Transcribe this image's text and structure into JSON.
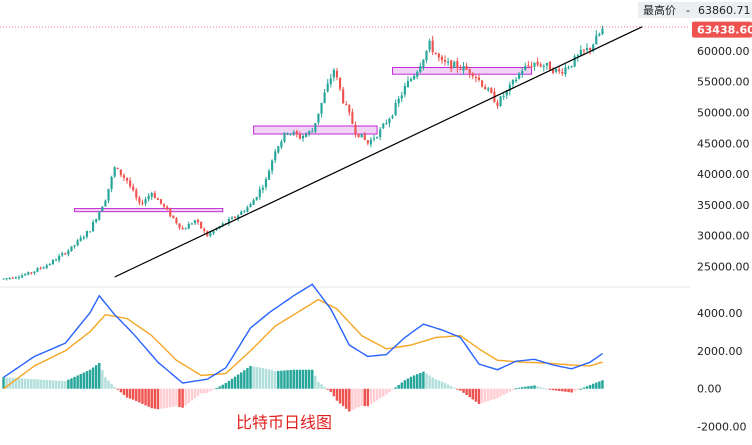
{
  "chart_data": {
    "type": "candlestick",
    "caption": "比特币日线图",
    "price_axis": {
      "ticks": [
        25000,
        30000,
        35000,
        40000,
        45000,
        50000,
        55000,
        60000
      ],
      "tick_labels": [
        "25000.00",
        "30000.00",
        "35000.00",
        "40000.00",
        "45000.00",
        "50000.00",
        "55000.00",
        "60000.00"
      ],
      "range": [
        22000,
        65000
      ]
    },
    "indicator_axis": {
      "ticks": [
        4000,
        2000,
        0,
        -2000
      ],
      "tick_labels": [
        "4000.00",
        "2000.00",
        "0.00",
        "-2000.00"
      ],
      "range": [
        -2700,
        5200
      ]
    },
    "high_marker": {
      "label": "最高价",
      "value_text": "63860.71",
      "value": 63860.71
    },
    "last_price": {
      "value_text": "63438.60",
      "value": 63438.6
    },
    "colors": {
      "up": "#26a69a",
      "down": "#ef5350",
      "line_fast": "#2962ff",
      "line_slow": "#f5a623",
      "trendline": "#000000",
      "zone": "#c02bd4"
    },
    "candle_count": 195,
    "price_path": [
      [
        0,
        23000
      ],
      [
        8,
        23800
      ],
      [
        15,
        25500
      ],
      [
        22,
        28000
      ],
      [
        28,
        31000
      ],
      [
        33,
        36000
      ],
      [
        36,
        41000
      ],
      [
        40,
        39000
      ],
      [
        44,
        35000
      ],
      [
        48,
        37000
      ],
      [
        53,
        34000
      ],
      [
        58,
        31000
      ],
      [
        62,
        32500
      ],
      [
        66,
        30000
      ],
      [
        70,
        31500
      ],
      [
        75,
        33000
      ],
      [
        80,
        35000
      ],
      [
        85,
        39000
      ],
      [
        88,
        44000
      ],
      [
        92,
        47000
      ],
      [
        96,
        46000
      ],
      [
        100,
        47000
      ],
      [
        104,
        53000
      ],
      [
        107,
        57000
      ],
      [
        110,
        52000
      ],
      [
        114,
        47000
      ],
      [
        118,
        45000
      ],
      [
        122,
        47000
      ],
      [
        126,
        50000
      ],
      [
        130,
        54000
      ],
      [
        134,
        57000
      ],
      [
        138,
        61000
      ],
      [
        142,
        58000
      ],
      [
        147,
        57500
      ],
      [
        152,
        56500
      ],
      [
        156,
        54000
      ],
      [
        160,
        51500
      ],
      [
        164,
        54000
      ],
      [
        168,
        57000
      ],
      [
        172,
        58000
      ],
      [
        176,
        57500
      ],
      [
        180,
        56500
      ],
      [
        184,
        58000
      ],
      [
        187,
        59500
      ],
      [
        190,
        60500
      ],
      [
        194,
        63400
      ]
    ],
    "macd_path": [
      [
        0,
        600
      ],
      [
        10,
        1700
      ],
      [
        20,
        2400
      ],
      [
        28,
        4000
      ],
      [
        31,
        4900
      ],
      [
        36,
        3900
      ],
      [
        42,
        2900
      ],
      [
        50,
        1400
      ],
      [
        58,
        300
      ],
      [
        66,
        500
      ],
      [
        72,
        1100
      ],
      [
        80,
        3200
      ],
      [
        86,
        4000
      ],
      [
        94,
        4900
      ],
      [
        100,
        5500
      ],
      [
        106,
        4200
      ],
      [
        112,
        2300
      ],
      [
        118,
        1700
      ],
      [
        124,
        1800
      ],
      [
        130,
        2700
      ],
      [
        136,
        3400
      ],
      [
        142,
        3100
      ],
      [
        148,
        2700
      ],
      [
        154,
        1300
      ],
      [
        160,
        1000
      ],
      [
        166,
        1450
      ],
      [
        172,
        1550
      ],
      [
        178,
        1250
      ],
      [
        184,
        1050
      ],
      [
        190,
        1400
      ],
      [
        194,
        1850
      ]
    ],
    "signal_path": [
      [
        0,
        0
      ],
      [
        10,
        1200
      ],
      [
        20,
        2000
      ],
      [
        28,
        3000
      ],
      [
        33,
        3900
      ],
      [
        40,
        3700
      ],
      [
        48,
        2800
      ],
      [
        56,
        1500
      ],
      [
        64,
        700
      ],
      [
        72,
        800
      ],
      [
        80,
        2000
      ],
      [
        88,
        3300
      ],
      [
        96,
        4100
      ],
      [
        102,
        4700
      ],
      [
        108,
        4200
      ],
      [
        116,
        2800
      ],
      [
        124,
        2100
      ],
      [
        132,
        2300
      ],
      [
        140,
        2700
      ],
      [
        148,
        2800
      ],
      [
        154,
        2100
      ],
      [
        160,
        1500
      ],
      [
        168,
        1400
      ],
      [
        176,
        1350
      ],
      [
        184,
        1250
      ],
      [
        190,
        1200
      ],
      [
        194,
        1400
      ]
    ],
    "trendlines": [
      {
        "from": [
          36,
          23300
        ],
        "to": [
          194,
          61000
        ]
      }
    ],
    "zones": [
      {
        "x0": 23,
        "x1": 71,
        "y0": 33900,
        "y1": 34400
      },
      {
        "x0": 81,
        "x1": 121,
        "y0": 46500,
        "y1": 47800
      },
      {
        "x0": 126,
        "x1": 171,
        "y0": 56200,
        "y1": 57300
      }
    ]
  }
}
